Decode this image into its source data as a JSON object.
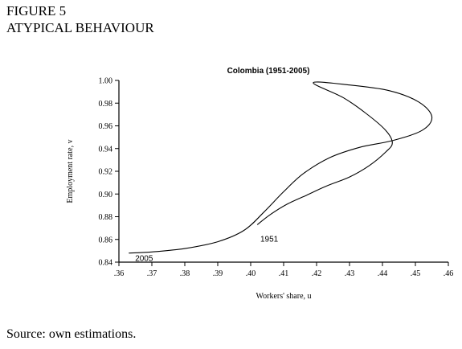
{
  "figure": {
    "number": "FIGURE 5",
    "heading": "ATYPICAL BEHAVIOUR"
  },
  "source_note": "Source: own estimations.",
  "chart_data": {
    "type": "line",
    "title": "Colombia (1951-2005)",
    "xlabel": "Workers' share, u",
    "ylabel": "Employment rate, v",
    "xlim": [
      0.36,
      0.46
    ],
    "ylim": [
      0.84,
      1.0
    ],
    "x_tick_labels": [
      ".36",
      ".37",
      ".38",
      ".39",
      ".40",
      ".41",
      ".42",
      ".43",
      ".44",
      ".45",
      ".46"
    ],
    "y_tick_labels": [
      "0.84",
      "0.86",
      "0.88",
      "0.90",
      "0.92",
      "0.94",
      "0.96",
      "0.98",
      "1.00"
    ],
    "annotations": [
      {
        "text": "1951",
        "x": 0.4,
        "y": 0.861
      },
      {
        "text": "2005",
        "x": 0.362,
        "y": 0.844
      }
    ],
    "series": [
      {
        "values": [
          {
            "x": 0.402,
            "y": 0.873
          },
          {
            "x": 0.406,
            "y": 0.882
          },
          {
            "x": 0.411,
            "y": 0.891
          },
          {
            "x": 0.417,
            "y": 0.899
          },
          {
            "x": 0.423,
            "y": 0.907
          },
          {
            "x": 0.43,
            "y": 0.915
          },
          {
            "x": 0.436,
            "y": 0.925
          },
          {
            "x": 0.441,
            "y": 0.937
          },
          {
            "x": 0.443,
            "y": 0.945
          },
          {
            "x": 0.441,
            "y": 0.956
          },
          {
            "x": 0.435,
            "y": 0.971
          },
          {
            "x": 0.428,
            "y": 0.985
          },
          {
            "x": 0.419,
            "y": 0.998
          },
          {
            "x": 0.43,
            "y": 0.996
          },
          {
            "x": 0.442,
            "y": 0.991
          },
          {
            "x": 0.451,
            "y": 0.981
          },
          {
            "x": 0.455,
            "y": 0.968
          },
          {
            "x": 0.452,
            "y": 0.956
          },
          {
            "x": 0.443,
            "y": 0.947
          },
          {
            "x": 0.433,
            "y": 0.941
          },
          {
            "x": 0.424,
            "y": 0.932
          },
          {
            "x": 0.416,
            "y": 0.918
          },
          {
            "x": 0.41,
            "y": 0.902
          },
          {
            "x": 0.404,
            "y": 0.884
          },
          {
            "x": 0.398,
            "y": 0.868
          },
          {
            "x": 0.39,
            "y": 0.858
          },
          {
            "x": 0.38,
            "y": 0.852
          },
          {
            "x": 0.37,
            "y": 0.849
          },
          {
            "x": 0.363,
            "y": 0.848
          }
        ]
      }
    ]
  }
}
